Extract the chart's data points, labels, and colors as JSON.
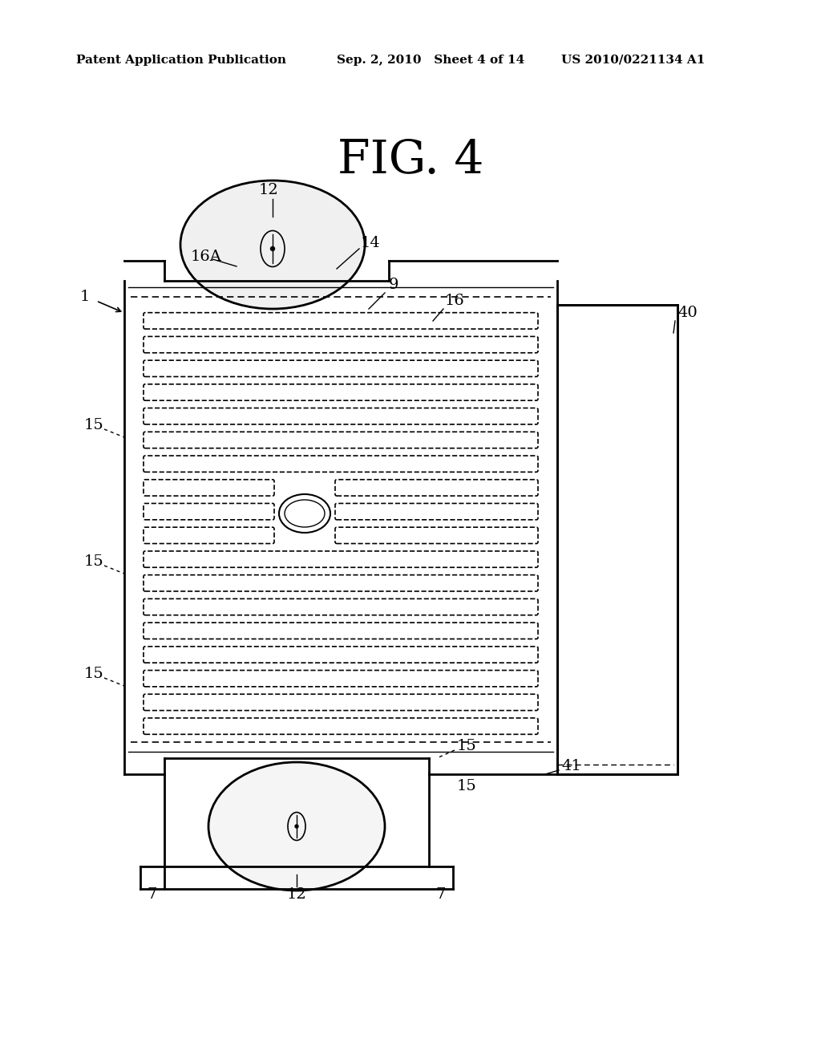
{
  "bg_color": "#ffffff",
  "header_left": "Patent Application Publication",
  "header_mid": "Sep. 2, 2010   Sheet 4 of 14",
  "header_right": "US 2010/0221134 A1",
  "fig_title": "FIG. 4",
  "label_1": "1",
  "label_7a": "7",
  "label_7b": "7",
  "label_9": "9",
  "label_12a": "12",
  "label_12b": "12",
  "label_14": "14",
  "label_15a": "15",
  "label_15b": "15",
  "label_15c": "15",
  "label_15d": "15",
  "label_15e": "15",
  "label_16": "16",
  "label_16A": "16A",
  "label_40": "40",
  "label_41": "41",
  "line_color": "#000000",
  "line_width": 1.5,
  "dash_pattern": [
    4,
    3
  ]
}
